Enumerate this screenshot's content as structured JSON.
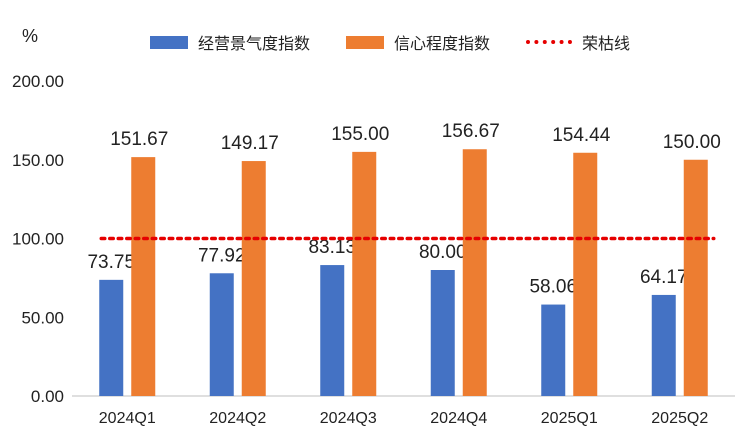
{
  "chart_data": {
    "type": "bar",
    "unit": "%",
    "categories": [
      "2024Q1",
      "2024Q2",
      "2024Q3",
      "2024Q4",
      "2025Q1",
      "2025Q2"
    ],
    "series": [
      {
        "name": "经营景气度指数",
        "values": [
          73.75,
          77.92,
          83.13,
          80.0,
          58.06,
          64.17
        ],
        "color": "#4472c4"
      },
      {
        "name": "信心程度指数",
        "values": [
          151.67,
          149.17,
          155.0,
          156.67,
          154.44,
          150.0
        ],
        "color": "#ed7d31"
      }
    ],
    "reference_line": {
      "name": "荣枯线",
      "value": 100,
      "color": "#e60000"
    },
    "ylim": [
      0,
      200
    ],
    "yticks": [
      "0.00",
      "50.00",
      "100.00",
      "150.00",
      "200.00"
    ],
    "grid": false,
    "legend_position": "top"
  }
}
